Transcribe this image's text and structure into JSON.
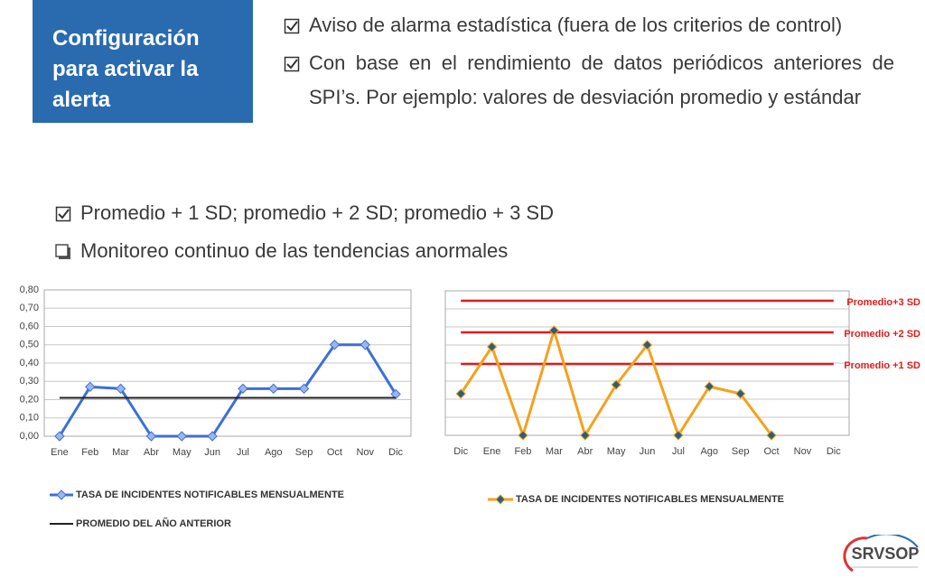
{
  "header": {
    "title": "Configuración para activar la alerta"
  },
  "top_bullets": [
    {
      "checked": true,
      "text": "Aviso de alarma estadística (fuera de los criterios de control)"
    },
    {
      "checked": true,
      "text": "Con base en el rendimiento de datos periódicos anteriores de SPI’s.  Por ejemplo: valores de desviación promedio y estándar"
    }
  ],
  "bullets": [
    {
      "checked": true,
      "text": "Promedio + 1 SD; promedio + 2 SD; promedio + 3 SD"
    },
    {
      "checked": false,
      "text": "Monitoreo continuo de las tendencias anormales"
    }
  ],
  "logo": "SRVSOP",
  "chart_data": [
    {
      "type": "line",
      "categories": [
        "Ene",
        "Feb",
        "Mar",
        "Abr",
        "May",
        "Jun",
        "Jul",
        "Ago",
        "Sep",
        "Oct",
        "Nov",
        "Dic"
      ],
      "series": [
        {
          "name": "TASA DE INCIDENTES NOTIFICABLES MENSUALMENTE",
          "color": "#3c6fd8",
          "marker_fill": "#9cb6ea",
          "marker": true,
          "values": [
            0,
            0.27,
            0.26,
            0,
            0,
            0,
            0.26,
            0.26,
            0.26,
            0.5,
            0.5,
            0.23
          ]
        },
        {
          "name": "PROMEDIO DEL AÑO ANTERIOR",
          "color": "#222222",
          "marker": false,
          "values": [
            0.21,
            0.21,
            0.21,
            0.21,
            0.21,
            0.21,
            0.21,
            0.21,
            0.21,
            0.21,
            0.21,
            0.21
          ]
        }
      ],
      "ylim": [
        0,
        0.8
      ],
      "yticks": [
        {
          "value": 0,
          "label": "0,00"
        },
        {
          "value": 0.1,
          "label": "0,10"
        },
        {
          "value": 0.2,
          "label": "0,20"
        },
        {
          "value": 0.3,
          "label": "0,30"
        },
        {
          "value": 0.4,
          "label": "0,40"
        },
        {
          "value": 0.5,
          "label": "0,50"
        },
        {
          "value": 0.6,
          "label": "0,60"
        },
        {
          "value": 0.7,
          "label": "0,70"
        },
        {
          "value": 0.8,
          "label": "0,80"
        }
      ],
      "ytick_labels": true,
      "grid": true,
      "legend": "bottom"
    },
    {
      "type": "line",
      "categories": [
        "Dic",
        "Ene",
        "Feb",
        "Mar",
        "Abr",
        "May",
        "Jun",
        "Jul",
        "Ago",
        "Sep",
        "Oct",
        "Nov",
        "Dic"
      ],
      "series": [
        {
          "name": "TASA DE INCIDENTES NOTIFICABLES MENSUALMENTE",
          "color": "#f5a11c",
          "marker_fill": "#2e5d78",
          "marker": true,
          "values": [
            0.23,
            0.49,
            0,
            0.58,
            0,
            0.28,
            0.5,
            0,
            0.27,
            0.23,
            0,
            null,
            null
          ]
        }
      ],
      "reference_lines": [
        {
          "label": "Promedio+3 SD",
          "value": 0.745,
          "color": "#e01b1b"
        },
        {
          "label": "Promedio +2 SD",
          "value": 0.57,
          "color": "#e01b1b"
        },
        {
          "label": "Promedio +1 SD",
          "value": 0.395,
          "color": "#e01b1b"
        }
      ],
      "ylim": [
        0,
        0.8
      ],
      "yticks": [
        0,
        0.1,
        0.2,
        0.3,
        0.4,
        0.5,
        0.6,
        0.7,
        0.8
      ],
      "ytick_labels": false,
      "grid": true,
      "legend": "bottom"
    }
  ]
}
